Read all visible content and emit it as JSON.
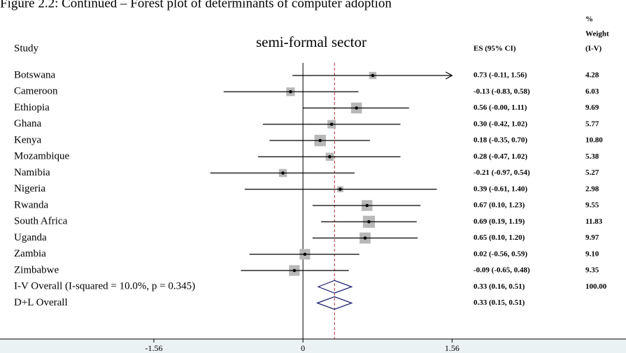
{
  "chart_data": {
    "type": "forest",
    "caption": "Figure 2.2: Continued – Forest plot of determinants of computer adoption",
    "title": "semi-formal sector",
    "study_header": "Study",
    "es_header": "ES (95% CI)",
    "weight_header": [
      "%",
      "Weight",
      "(I-V)"
    ],
    "xlim": [
      -3.17,
      3.38
    ],
    "xticks": [
      -1.56,
      0,
      1.56
    ],
    "null_line": 0,
    "studies": [
      {
        "name": "Botswana",
        "es": 0.73,
        "lo": -0.11,
        "hi": 1.56,
        "arrow": true,
        "label": "0.73 (-0.11, 1.56)",
        "weight": 4.28
      },
      {
        "name": "Cameroon",
        "es": -0.13,
        "lo": -0.83,
        "hi": 0.58,
        "label": "-0.13 (-0.83, 0.58)",
        "weight": 6.03
      },
      {
        "name": "Ethiopia",
        "es": 0.56,
        "lo": 0.0,
        "hi": 1.11,
        "label": "0.56 (-0.00, 1.11)",
        "weight": 9.69
      },
      {
        "name": "Ghana",
        "es": 0.3,
        "lo": -0.42,
        "hi": 1.02,
        "label": "0.30 (-0.42, 1.02)",
        "weight": 5.77
      },
      {
        "name": "Kenya",
        "es": 0.18,
        "lo": -0.35,
        "hi": 0.7,
        "label": "0.18 (-0.35, 0.70)",
        "weight": 10.8,
        "weight_label": "10.80"
      },
      {
        "name": "Mozambique",
        "es": 0.28,
        "lo": -0.47,
        "hi": 1.02,
        "label": "0.28 (-0.47, 1.02)",
        "weight": 5.38
      },
      {
        "name": "Namibia",
        "es": -0.21,
        "lo": -0.97,
        "hi": 0.54,
        "label": "-0.21 (-0.97, 0.54)",
        "weight": 5.27
      },
      {
        "name": "Nigeria",
        "es": 0.39,
        "lo": -0.61,
        "hi": 1.4,
        "label": "0.39 (-0.61, 1.40)",
        "weight": 2.98
      },
      {
        "name": "Rwanda",
        "es": 0.67,
        "lo": 0.1,
        "hi": 1.23,
        "label": "0.67 (0.10, 1.23)",
        "weight": 9.55
      },
      {
        "name": "South Africa",
        "es": 0.69,
        "lo": 0.19,
        "hi": 1.19,
        "label": "0.69 (0.19, 1.19)",
        "weight": 11.83
      },
      {
        "name": "Uganda",
        "es": 0.65,
        "lo": 0.1,
        "hi": 1.2,
        "label": "0.65 (0.10, 1.20)",
        "weight": 9.97
      },
      {
        "name": "Zambia",
        "es": 0.02,
        "lo": -0.56,
        "hi": 0.59,
        "label": "0.02 (-0.56, 0.59)",
        "weight": 9.1,
        "weight_label": "9.10"
      },
      {
        "name": "Zimbabwe",
        "es": -0.09,
        "lo": -0.65,
        "hi": 0.48,
        "label": "-0.09 (-0.65, 0.48)",
        "weight": 9.35
      }
    ],
    "overall": [
      {
        "name": "I-V Overall  (I-squared = 10.0%, p = 0.345)",
        "es": 0.33,
        "lo": 0.16,
        "hi": 0.51,
        "label": "0.33 (0.16, 0.51)",
        "weight": 100,
        "weight_label": "100.00"
      },
      {
        "name": "D+L Overall",
        "es": 0.33,
        "lo": 0.15,
        "hi": 0.51,
        "label": "0.33 (0.15, 0.51)"
      }
    ],
    "overall_line_color": "#a52a2a",
    "diamond_color": "#1a1a6e",
    "square_color": "#b8b8b8"
  }
}
